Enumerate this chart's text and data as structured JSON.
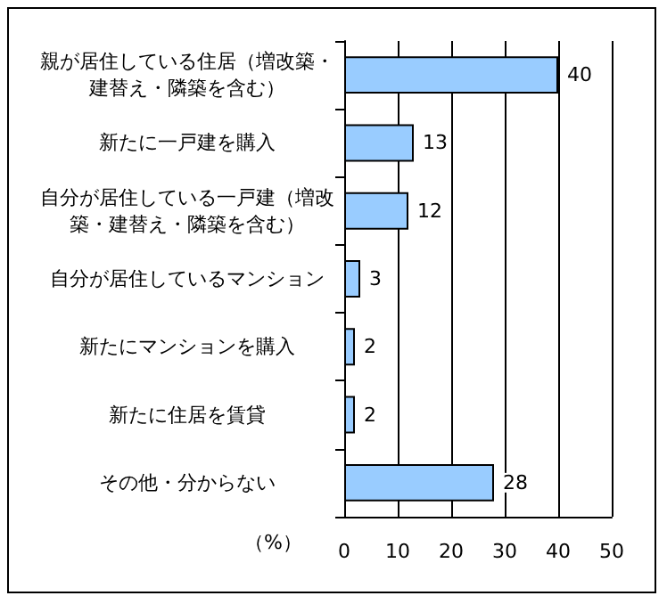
{
  "chart_data": {
    "type": "bar",
    "orientation": "horizontal",
    "categories": [
      "親が居住している住居（増改築・建替え・隣築を含む）",
      "新たに一戸建を購入",
      "自分が居住している一戸建（増改築・建替え・隣築を含む）",
      "自分が居住しているマンション",
      "新たにマンションを購入",
      "新たに住居を賃貸",
      "その他・分からない"
    ],
    "values": [
      40,
      13,
      12,
      3,
      2,
      2,
      28
    ],
    "color": "#99ccff",
    "xlabel": "（%）",
    "xlim": [
      0,
      50
    ],
    "xticks": [
      0,
      10,
      20,
      30,
      40,
      50
    ],
    "grid": "x",
    "data_labels": true
  }
}
